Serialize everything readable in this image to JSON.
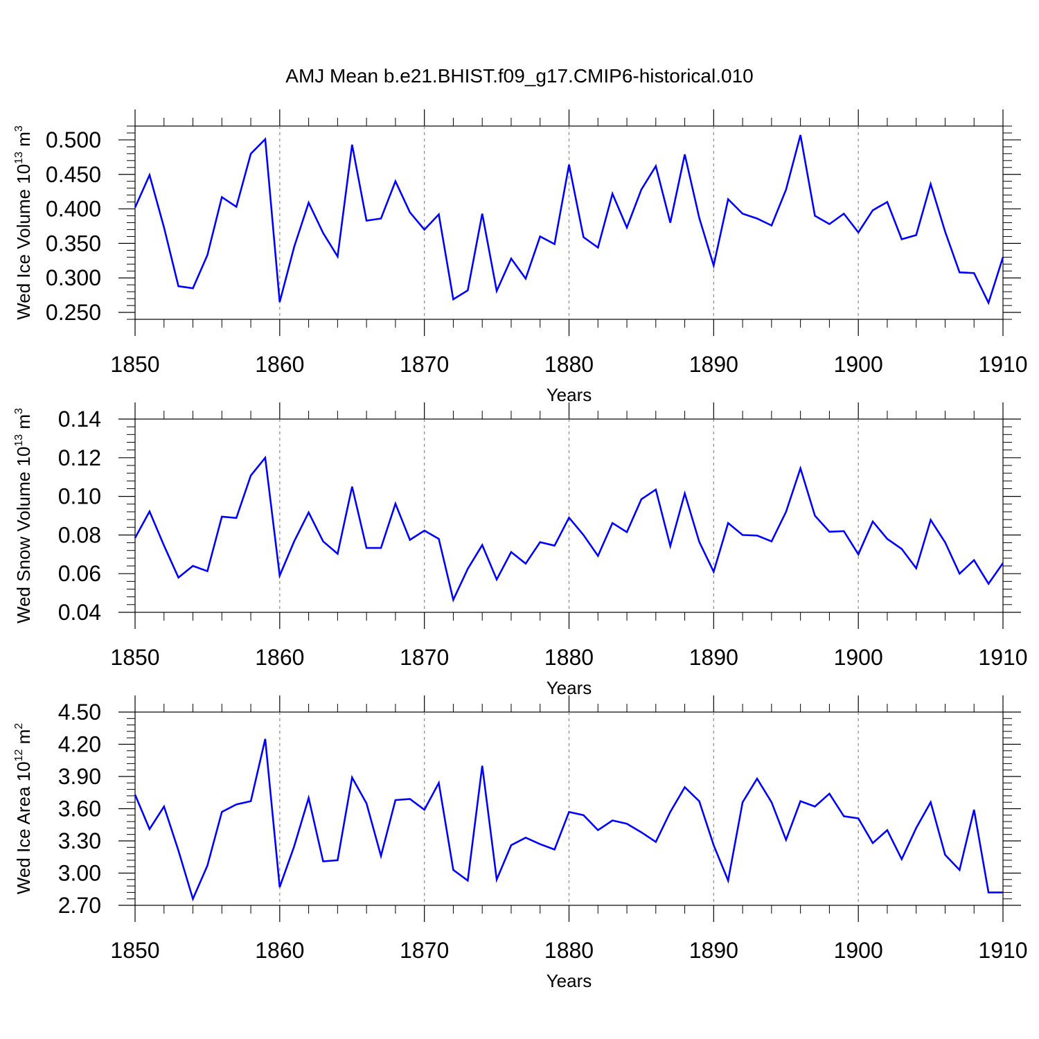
{
  "title": "AMJ Mean b.e21.BHIST.f09_g17.CMIP6-historical.010",
  "line_color": "#0000ff",
  "chart_data": [
    {
      "type": "line",
      "ylabel": {
        "prefix": "Wed Ice Volume 10",
        "sup1": "13",
        "mid": " m",
        "sup2": "3"
      },
      "xlabel": "Years",
      "x_range": [
        1850,
        1910
      ],
      "ylim": [
        0.24,
        0.52
      ],
      "y_ticks": [
        "0.250",
        "0.300",
        "0.350",
        "0.400",
        "0.450",
        "0.500"
      ],
      "x_ticks": [
        "1850",
        "1860",
        "1870",
        "1880",
        "1890",
        "1900",
        "1910"
      ],
      "series": [
        {
          "name": "Wed Ice Volume",
          "x": [
            1850,
            1851,
            1852,
            1853,
            1854,
            1855,
            1856,
            1857,
            1858,
            1859,
            1860,
            1861,
            1862,
            1863,
            1864,
            1865,
            1866,
            1867,
            1868,
            1869,
            1870,
            1871,
            1872,
            1873,
            1874,
            1875,
            1876,
            1877,
            1878,
            1879,
            1880,
            1881,
            1882,
            1883,
            1884,
            1885,
            1886,
            1887,
            1888,
            1889,
            1890,
            1891,
            1892,
            1893,
            1894,
            1895,
            1896,
            1897,
            1898,
            1899,
            1900,
            1901,
            1902,
            1903,
            1904,
            1905,
            1906,
            1907,
            1908,
            1909,
            1910
          ],
          "values": [
            0.402,
            0.449,
            0.373,
            0.288,
            0.285,
            0.333,
            0.417,
            0.403,
            0.48,
            0.501,
            0.265,
            0.345,
            0.409,
            0.365,
            0.331,
            0.493,
            0.383,
            0.386,
            0.44,
            0.395,
            0.37,
            0.392,
            0.269,
            0.282,
            0.393,
            0.281,
            0.328,
            0.299,
            0.36,
            0.349,
            0.464,
            0.359,
            0.344,
            0.422,
            0.373,
            0.428,
            0.462,
            0.38,
            0.479,
            0.387,
            0.318,
            0.414,
            0.393,
            0.386,
            0.376,
            0.428,
            0.507,
            0.39,
            0.378,
            0.393,
            0.366,
            0.398,
            0.41,
            0.356,
            0.362,
            0.436,
            0.367,
            0.308,
            0.307,
            0.264,
            0.33
          ]
        }
      ]
    },
    {
      "type": "line",
      "ylabel": {
        "prefix": "Wed Snow Volume 10",
        "sup1": "13",
        "mid": " m",
        "sup2": "3"
      },
      "xlabel": "Years",
      "x_range": [
        1850,
        1910
      ],
      "ylim": [
        0.04,
        0.14
      ],
      "y_ticks": [
        "0.04",
        "0.06",
        "0.08",
        "0.10",
        "0.12",
        "0.14"
      ],
      "x_ticks": [
        "1850",
        "1860",
        "1870",
        "1880",
        "1890",
        "1900",
        "1910"
      ],
      "series": [
        {
          "name": "Wed Snow Volume",
          "x": [
            1850,
            1851,
            1852,
            1853,
            1854,
            1855,
            1856,
            1857,
            1858,
            1859,
            1860,
            1861,
            1862,
            1863,
            1864,
            1865,
            1866,
            1867,
            1868,
            1869,
            1870,
            1871,
            1872,
            1873,
            1874,
            1875,
            1876,
            1877,
            1878,
            1879,
            1880,
            1881,
            1882,
            1883,
            1884,
            1885,
            1886,
            1887,
            1888,
            1889,
            1890,
            1891,
            1892,
            1893,
            1894,
            1895,
            1896,
            1897,
            1898,
            1899,
            1900,
            1901,
            1902,
            1903,
            1904,
            1905,
            1906,
            1907,
            1908,
            1909,
            1910
          ],
          "values": [
            0.0785,
            0.0922,
            0.0745,
            0.058,
            0.064,
            0.0613,
            0.0895,
            0.0888,
            0.1108,
            0.12,
            0.059,
            0.0767,
            0.0917,
            0.0767,
            0.0703,
            0.105,
            0.0733,
            0.0733,
            0.0962,
            0.0775,
            0.0823,
            0.078,
            0.0465,
            0.0625,
            0.0748,
            0.057,
            0.0712,
            0.0652,
            0.0763,
            0.0745,
            0.089,
            0.08,
            0.0692,
            0.0862,
            0.0815,
            0.0985,
            0.1035,
            0.0743,
            0.1015,
            0.0765,
            0.061,
            0.0862,
            0.08,
            0.0797,
            0.0767,
            0.092,
            0.1145,
            0.09,
            0.0817,
            0.082,
            0.07,
            0.087,
            0.078,
            0.0728,
            0.0628,
            0.0878,
            0.0762,
            0.06,
            0.067,
            0.0548,
            0.0655
          ]
        }
      ]
    },
    {
      "type": "line",
      "ylabel": {
        "prefix": "Wed Ice Area 10",
        "sup1": "12",
        "mid": " m",
        "sup2": "2"
      },
      "xlabel": "Years",
      "x_range": [
        1850,
        1910
      ],
      "ylim": [
        2.7,
        4.5
      ],
      "y_ticks": [
        "2.70",
        "3.00",
        "3.30",
        "3.60",
        "3.90",
        "4.20",
        "4.50"
      ],
      "x_ticks": [
        "1850",
        "1860",
        "1870",
        "1880",
        "1890",
        "1900",
        "1910"
      ],
      "series": [
        {
          "name": "Wed Ice Area",
          "x": [
            1850,
            1851,
            1852,
            1853,
            1854,
            1855,
            1856,
            1857,
            1858,
            1859,
            1860,
            1861,
            1862,
            1863,
            1864,
            1865,
            1866,
            1867,
            1868,
            1869,
            1870,
            1871,
            1872,
            1873,
            1874,
            1875,
            1876,
            1877,
            1878,
            1879,
            1880,
            1881,
            1882,
            1883,
            1884,
            1885,
            1886,
            1887,
            1888,
            1889,
            1890,
            1891,
            1892,
            1893,
            1894,
            1895,
            1896,
            1897,
            1898,
            1899,
            1900,
            1901,
            1902,
            1903,
            1904,
            1905,
            1906,
            1907,
            1908,
            1909,
            1910
          ],
          "values": [
            3.73,
            3.41,
            3.62,
            3.21,
            2.76,
            3.07,
            3.57,
            3.64,
            3.67,
            4.25,
            2.87,
            3.25,
            3.7,
            3.11,
            3.12,
            3.89,
            3.65,
            3.16,
            3.68,
            3.69,
            3.59,
            3.84,
            3.03,
            2.93,
            4.0,
            2.94,
            3.26,
            3.33,
            3.27,
            3.22,
            3.57,
            3.54,
            3.4,
            3.49,
            3.46,
            3.38,
            3.29,
            3.57,
            3.8,
            3.67,
            3.26,
            2.93,
            3.66,
            3.88,
            3.66,
            3.31,
            3.67,
            3.62,
            3.74,
            3.53,
            3.51,
            3.28,
            3.4,
            3.13,
            3.42,
            3.66,
            3.17,
            3.03,
            3.59,
            2.82,
            2.82
          ]
        }
      ]
    }
  ]
}
